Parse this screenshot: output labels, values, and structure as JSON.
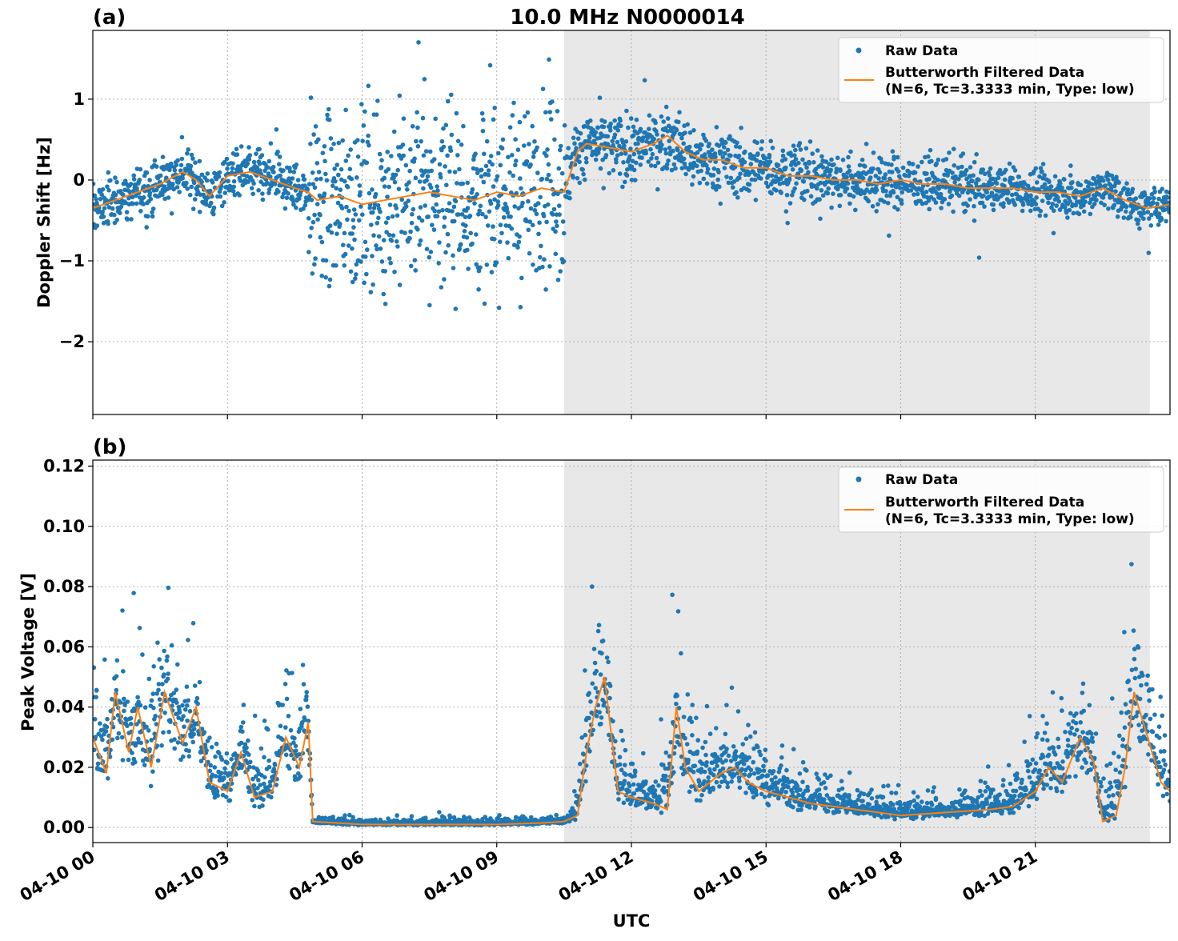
{
  "figure": {
    "title": "10.0 MHz N0000014",
    "xlabel": "UTC"
  },
  "colors": {
    "raw": "#1f77b4",
    "filtered": "#ff7f0e",
    "shade": "#e8e8e8",
    "grid": "#b0b0b0"
  },
  "legend": {
    "raw_label": "Raw Data",
    "filtered_label_line1": "Butterworth Filtered Data",
    "filtered_label_line2": "(N=6, Tc=3.3333 min, Type: low)",
    "placement": "upper-right"
  },
  "chart_data": [
    {
      "type": "scatter",
      "panel_label": "(a)",
      "ylabel": "Doppler Shift [Hz]",
      "xlim_hours": [
        0,
        24
      ],
      "ylim": [
        -2.9,
        1.85
      ],
      "yticks": [
        -2,
        -1,
        0,
        1
      ],
      "ytick_labels": [
        "−2",
        "−1",
        "0",
        "1"
      ],
      "grid": true,
      "shaded_hours": [
        10.5,
        23.55
      ],
      "series": [
        {
          "name": "Raw Data",
          "style": "dots",
          "noise_profile_hours": [
            [
              0,
              0.15
            ],
            [
              4.8,
              0.15
            ],
            [
              4.85,
              0.55
            ],
            [
              10.5,
              0.55
            ],
            [
              10.6,
              0.2
            ],
            [
              24,
              0.12
            ]
          ]
        },
        {
          "name": "Butterworth Filtered Data",
          "style": "line",
          "x_hours": [
            0,
            0.5,
            1,
            1.5,
            2,
            2.3,
            2.6,
            3,
            3.5,
            4,
            4.5,
            4.8,
            5,
            5.5,
            6,
            6.5,
            7,
            7.5,
            8,
            8.5,
            9,
            9.5,
            10,
            10.5,
            10.8,
            11,
            11.5,
            12,
            12.5,
            12.8,
            13.2,
            13.6,
            14,
            14.5,
            15,
            15.5,
            16,
            16.5,
            17,
            17.5,
            18,
            18.5,
            19,
            19.5,
            20,
            20.5,
            21,
            21.5,
            22,
            22.5,
            23,
            23.5,
            24
          ],
          "y": [
            -0.35,
            -0.25,
            -0.15,
            -0.05,
            0.1,
            0.0,
            -0.2,
            0.05,
            0.1,
            0.0,
            -0.1,
            -0.15,
            -0.25,
            -0.2,
            -0.3,
            -0.25,
            -0.2,
            -0.15,
            -0.2,
            -0.25,
            -0.15,
            -0.2,
            -0.1,
            -0.15,
            0.35,
            0.45,
            0.4,
            0.35,
            0.45,
            0.55,
            0.35,
            0.25,
            0.25,
            0.15,
            0.15,
            0.05,
            0.05,
            0.0,
            0.0,
            -0.05,
            0.0,
            -0.05,
            -0.05,
            -0.1,
            -0.1,
            -0.1,
            -0.15,
            -0.15,
            -0.2,
            -0.1,
            -0.25,
            -0.35,
            -0.3
          ]
        }
      ]
    },
    {
      "type": "scatter",
      "panel_label": "(b)",
      "ylabel": "Peak Voltage [V]",
      "xlim_hours": [
        0,
        24
      ],
      "ylim": [
        -0.005,
        0.122
      ],
      "yticks": [
        0.0,
        0.02,
        0.04,
        0.06,
        0.08,
        0.1,
        0.12
      ],
      "ytick_labels": [
        "0.00",
        "0.02",
        "0.04",
        "0.06",
        "0.08",
        "0.10",
        "0.12"
      ],
      "xtick_labels": [
        "04-10 00",
        "04-10 03",
        "04-10 06",
        "04-10 09",
        "04-10 12",
        "04-10 15",
        "04-10 18",
        "04-10 21"
      ],
      "xticks_hours": [
        0,
        3,
        6,
        9,
        12,
        15,
        18,
        21
      ],
      "grid": true,
      "shaded_hours": [
        10.5,
        23.55
      ],
      "series": [
        {
          "name": "Raw Data",
          "style": "dots",
          "envelope_hours": [
            [
              0,
              0.03
            ],
            [
              1,
              0.028
            ],
            [
              2,
              0.03
            ],
            [
              2.6,
              0.015
            ],
            [
              3.3,
              0.015
            ],
            [
              4,
              0.022
            ],
            [
              4.8,
              0.03
            ],
            [
              4.85,
              0.002
            ],
            [
              10.6,
              0.002
            ],
            [
              11,
              0.03
            ],
            [
              11.3,
              0.04
            ],
            [
              11.6,
              0.015
            ],
            [
              12.5,
              0.012
            ],
            [
              13,
              0.035
            ],
            [
              13.5,
              0.02
            ],
            [
              14.5,
              0.02
            ],
            [
              15.5,
              0.012
            ],
            [
              17,
              0.008
            ],
            [
              18,
              0.006
            ],
            [
              19,
              0.006
            ],
            [
              20,
              0.008
            ],
            [
              21,
              0.018
            ],
            [
              22,
              0.025
            ],
            [
              22.4,
              0.01
            ],
            [
              23,
              0.04
            ],
            [
              23.5,
              0.03
            ],
            [
              24,
              0.012
            ]
          ]
        },
        {
          "name": "Butterworth Filtered Data",
          "style": "line",
          "x_hours": [
            0,
            0.3,
            0.5,
            0.8,
            1,
            1.3,
            1.6,
            2,
            2.3,
            2.6,
            3,
            3.3,
            3.6,
            4,
            4.3,
            4.6,
            4.8,
            4.9,
            6,
            7,
            8,
            9,
            10,
            10.5,
            10.8,
            11,
            11.2,
            11.4,
            11.7,
            12,
            12.5,
            12.8,
            13,
            13.2,
            13.5,
            14,
            14.3,
            14.6,
            15,
            15.5,
            16,
            17,
            18,
            19,
            20,
            20.5,
            21,
            21.3,
            21.6,
            22,
            22.3,
            22.5,
            22.8,
            23,
            23.2,
            23.5,
            23.8,
            24
          ],
          "y": [
            0.03,
            0.018,
            0.045,
            0.025,
            0.04,
            0.02,
            0.045,
            0.028,
            0.04,
            0.015,
            0.012,
            0.025,
            0.01,
            0.012,
            0.03,
            0.02,
            0.035,
            0.002,
            0.001,
            0.001,
            0.001,
            0.001,
            0.0015,
            0.002,
            0.004,
            0.025,
            0.04,
            0.05,
            0.012,
            0.01,
            0.008,
            0.006,
            0.04,
            0.02,
            0.012,
            0.018,
            0.02,
            0.015,
            0.012,
            0.01,
            0.008,
            0.006,
            0.004,
            0.005,
            0.006,
            0.007,
            0.012,
            0.02,
            0.015,
            0.03,
            0.022,
            0.002,
            0.004,
            0.02,
            0.045,
            0.03,
            0.015,
            0.012
          ]
        }
      ]
    }
  ]
}
